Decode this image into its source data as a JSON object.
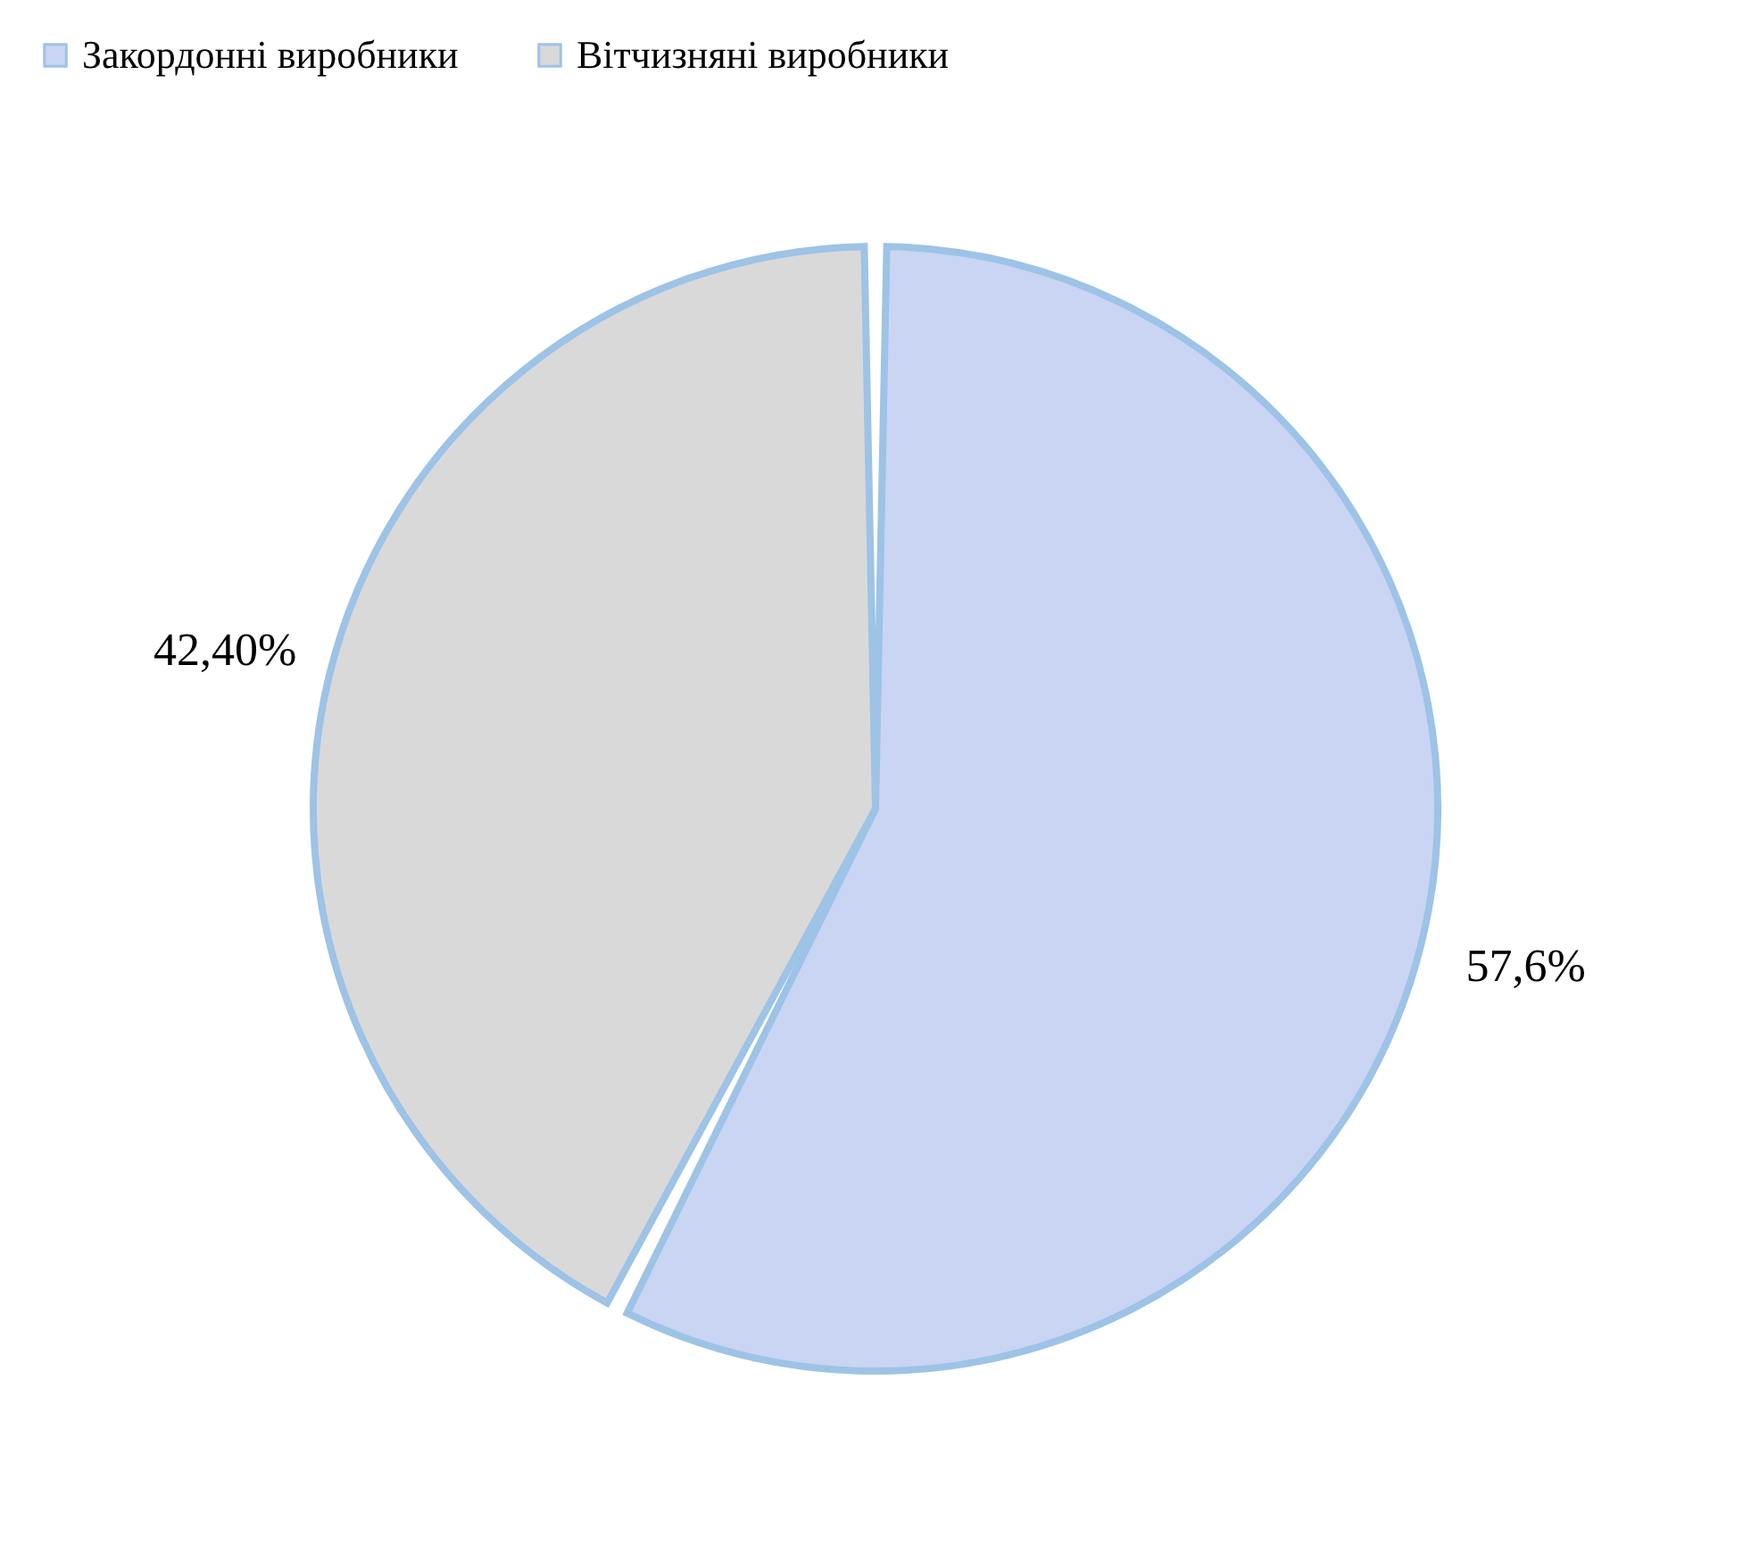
{
  "chart_data": {
    "type": "pie",
    "categories": [
      "Закордонні виробники",
      "Вітчизняні виробники"
    ],
    "values": [
      57.6,
      42.4
    ],
    "colors": [
      "#c9d5f2",
      "#d9d9d9"
    ],
    "value_labels": [
      "57,6%",
      "42,40%"
    ],
    "legend": "top"
  }
}
